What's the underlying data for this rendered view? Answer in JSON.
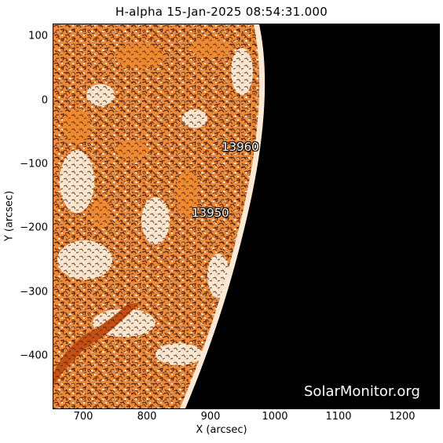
{
  "title": "H-alpha 15-Jan-2025 08:54:31.000",
  "x_axis": {
    "label": "X (arcsec)",
    "ticks": [
      "700",
      "800",
      "900",
      "1000",
      "1100",
      "1200"
    ],
    "range": [
      650,
      1255
    ]
  },
  "y_axis": {
    "label": "Y (arcsec)",
    "ticks": [
      "100",
      "0",
      "−100",
      "−200",
      "−300",
      "−400"
    ],
    "range": [
      -480,
      120
    ]
  },
  "regions": [
    {
      "label": "13960",
      "x": 930,
      "y": -78
    },
    {
      "label": "13950",
      "x": 890,
      "y": -180
    }
  ],
  "watermark": "SolarMonitor.org",
  "colors": {
    "limb_fill": "#ec8a3a",
    "bright": "#fff2e4",
    "mottle": "#7a2e0a",
    "space": "#000000"
  }
}
